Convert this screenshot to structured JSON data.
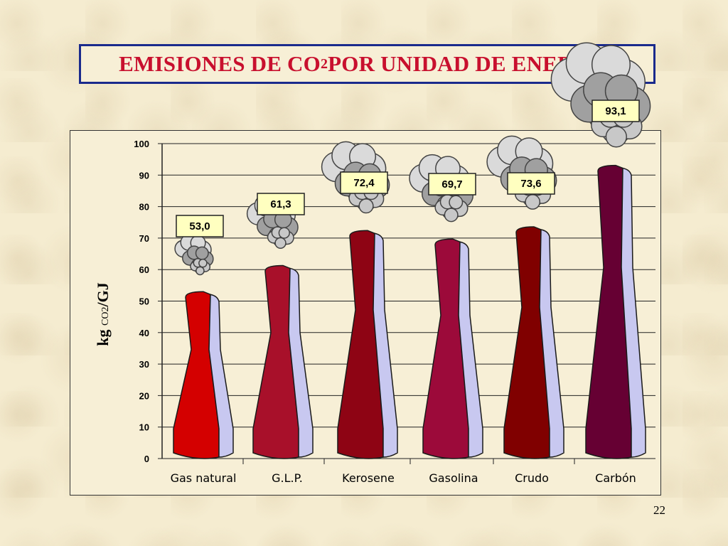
{
  "slide": {
    "title_main": "EMISIONES DE CO",
    "title_sub": "2",
    "title_rest": " POR UNIDAD DE ENERGÍA",
    "page_number": "22"
  },
  "chart_data": {
    "type": "bar",
    "title": "EMISIONES DE CO2 POR UNIDAD DE ENERGÍA",
    "ylabel_main": "kg ",
    "ylabel_sub": "CO2",
    "ylabel_end": "/GJ",
    "ylim": [
      0,
      100
    ],
    "yticks": [
      0,
      10,
      20,
      30,
      40,
      50,
      60,
      70,
      80,
      90,
      100
    ],
    "grid": true,
    "categories": [
      "Gas natural",
      "G.L.P.",
      "Kerosene",
      "Gasolina",
      "Crudo",
      "Carbón"
    ],
    "values": [
      53.0,
      61.3,
      72.4,
      69.7,
      73.6,
      93.1
    ],
    "value_labels": [
      "53,0",
      "61,3",
      "72,4",
      "69,7",
      "73,6",
      "93,1"
    ],
    "colors": [
      "#d40000",
      "#a8102a",
      "#8e0414",
      "#9c0a3a",
      "#800000",
      "#660033"
    ],
    "side_color": "#c8c8f0"
  }
}
